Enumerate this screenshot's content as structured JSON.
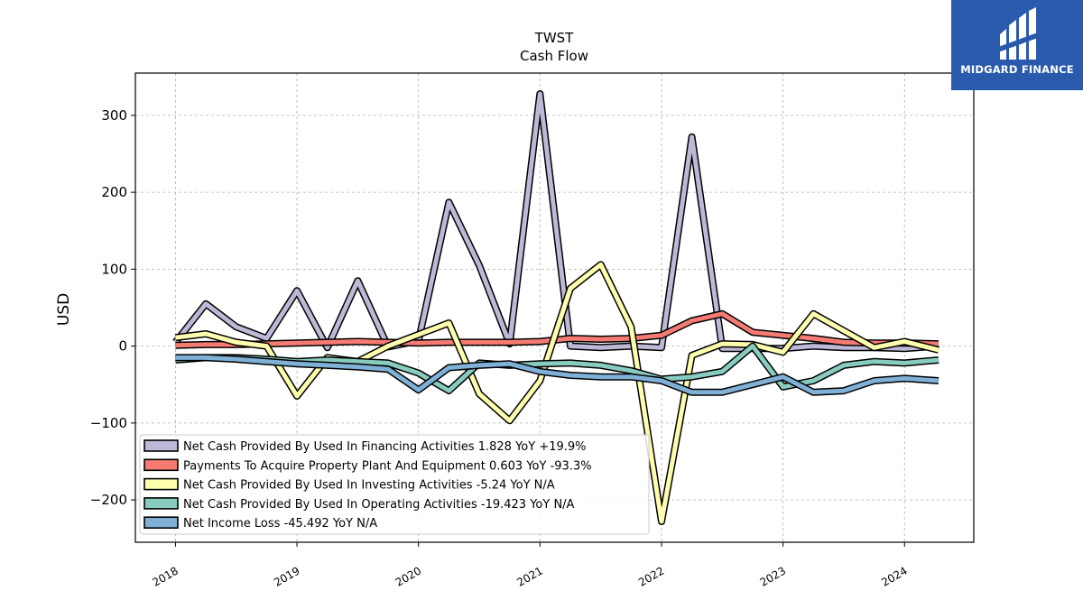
{
  "brand": {
    "name": "MIDGARD FINANCE",
    "bg_color": "#2a5aab"
  },
  "chart_data": {
    "type": "line",
    "title": "TWST",
    "subtitle": "Cash Flow",
    "ylabel": "USD",
    "xlabel": "",
    "ylim": [
      -255,
      355
    ],
    "xlim": [
      2017.67,
      2024.57
    ],
    "yticks": [
      300,
      200,
      100,
      0,
      -100,
      -200
    ],
    "ytick_labels": [
      "300",
      "200",
      "100",
      "0",
      "−100",
      "−200"
    ],
    "xticks": [
      2018,
      2019,
      2020,
      2021,
      2022,
      2023,
      2024
    ],
    "xtick_labels": [
      "2018",
      "2019",
      "2020",
      "2021",
      "2022",
      "2023",
      "2024"
    ],
    "grid": true,
    "legend_position": "lower-left",
    "x": [
      2018.0,
      2018.25,
      2018.5,
      2018.75,
      2019.0,
      2019.25,
      2019.5,
      2019.75,
      2020.0,
      2020.25,
      2020.5,
      2020.75,
      2021.0,
      2021.25,
      2021.5,
      2021.75,
      2022.0,
      2022.25,
      2022.5,
      2022.75,
      2023.0,
      2023.25,
      2023.5,
      2023.75,
      2024.0,
      2024.28
    ],
    "series": [
      {
        "name": "Net Cash Provided By Used In Financing Activities",
        "legend_label": "Net Cash Provided By Used In Financing Activities  1.828 YoY +19.9%",
        "color": "#bcb8d6",
        "values": [
          5,
          55,
          25,
          10,
          72,
          -2,
          85,
          -1,
          7,
          187,
          105,
          3,
          328,
          0,
          -2,
          0,
          -2,
          272,
          -3,
          -3,
          -3,
          0,
          -2,
          -2,
          -3,
          0
        ]
      },
      {
        "name": "Payments To Acquire Property Plant And Equipment",
        "legend_label": "Payments To Acquire Property Plant And Equipment  0.603 YoY -93.3%",
        "color": "#f57b72",
        "values": [
          1,
          2,
          2,
          3,
          4,
          5,
          6,
          5,
          4,
          5,
          5,
          5,
          6,
          10,
          9,
          10,
          14,
          33,
          42,
          18,
          14,
          10,
          5,
          4,
          4,
          3
        ]
      },
      {
        "name": "Net Cash Provided By Used In Investing Activities",
        "legend_label": "Net Cash Provided By Used In Investing Activities  -5.24 YoY N/A",
        "color": "#fdfdae",
        "values": [
          11,
          16,
          5,
          0,
          -65,
          -15,
          -20,
          0,
          15,
          30,
          -62,
          -97,
          -45,
          75,
          106,
          25,
          -228,
          -12,
          3,
          2,
          -8,
          42,
          20,
          -2,
          6,
          -5
        ]
      },
      {
        "name": "Net Cash Provided By Used In Operating Activities",
        "legend_label": "Net Cash Provided By Used In Operating Activities  -19.423 YoY N/A",
        "color": "#88cbbf",
        "values": [
          -18,
          -15,
          -15,
          -17,
          -20,
          -18,
          -20,
          -22,
          -35,
          -58,
          -22,
          -25,
          -23,
          -22,
          -25,
          -32,
          -43,
          -40,
          -33,
          0,
          -53,
          -45,
          -25,
          -20,
          -22,
          -18
        ]
      },
      {
        "name": "Net Income Loss",
        "legend_label": "Net Income Loss  -45.492 YoY N/A",
        "color": "#7fb0d6",
        "values": [
          -15,
          -15,
          -17,
          -20,
          -23,
          -25,
          -27,
          -30,
          -57,
          -28,
          -25,
          -23,
          -33,
          -38,
          -40,
          -40,
          -45,
          -60,
          -60,
          -50,
          -40,
          -60,
          -58,
          -45,
          -42,
          -45
        ]
      }
    ]
  }
}
